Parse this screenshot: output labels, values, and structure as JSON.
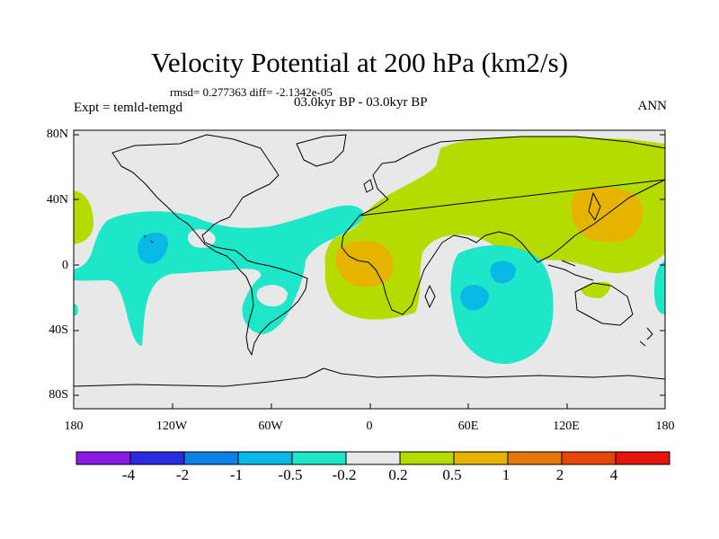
{
  "figure": {
    "title": "Velocity Potential at 200 hPa (km2/s)",
    "stats": "rmsd= 0.277363 diff= -2.1342e-05",
    "experiment": "Expt = temld-temgd",
    "period": "03.0kyr BP - 03.0kyr BP",
    "season": "ANN"
  },
  "axes": {
    "lat_labels": [
      "80N",
      "40N",
      "0",
      "40S",
      "80S"
    ],
    "lon_labels": [
      "180",
      "120W",
      "60W",
      "0",
      "60E",
      "120E",
      "180"
    ]
  },
  "colorbar": {
    "labels": [
      "-4",
      "-2",
      "-1",
      "-0.5",
      "-0.2",
      "0.2",
      "0.5",
      "1",
      "2",
      "4"
    ],
    "colors": [
      "#8a1be0",
      "#2a2ae0",
      "#0a82e6",
      "#0ab8e6",
      "#1ee6c8",
      "#e8e8e8",
      "#b4dc00",
      "#e6b400",
      "#e6780a",
      "#e6460a",
      "#e6140a"
    ]
  },
  "map_colors": {
    "neutral": "#e8e8e8",
    "neg_weak": "#1ee6c8",
    "neg_mid": "#0ab8e6",
    "pos_weak": "#b4dc00",
    "pos_mid": "#e6b400"
  }
}
